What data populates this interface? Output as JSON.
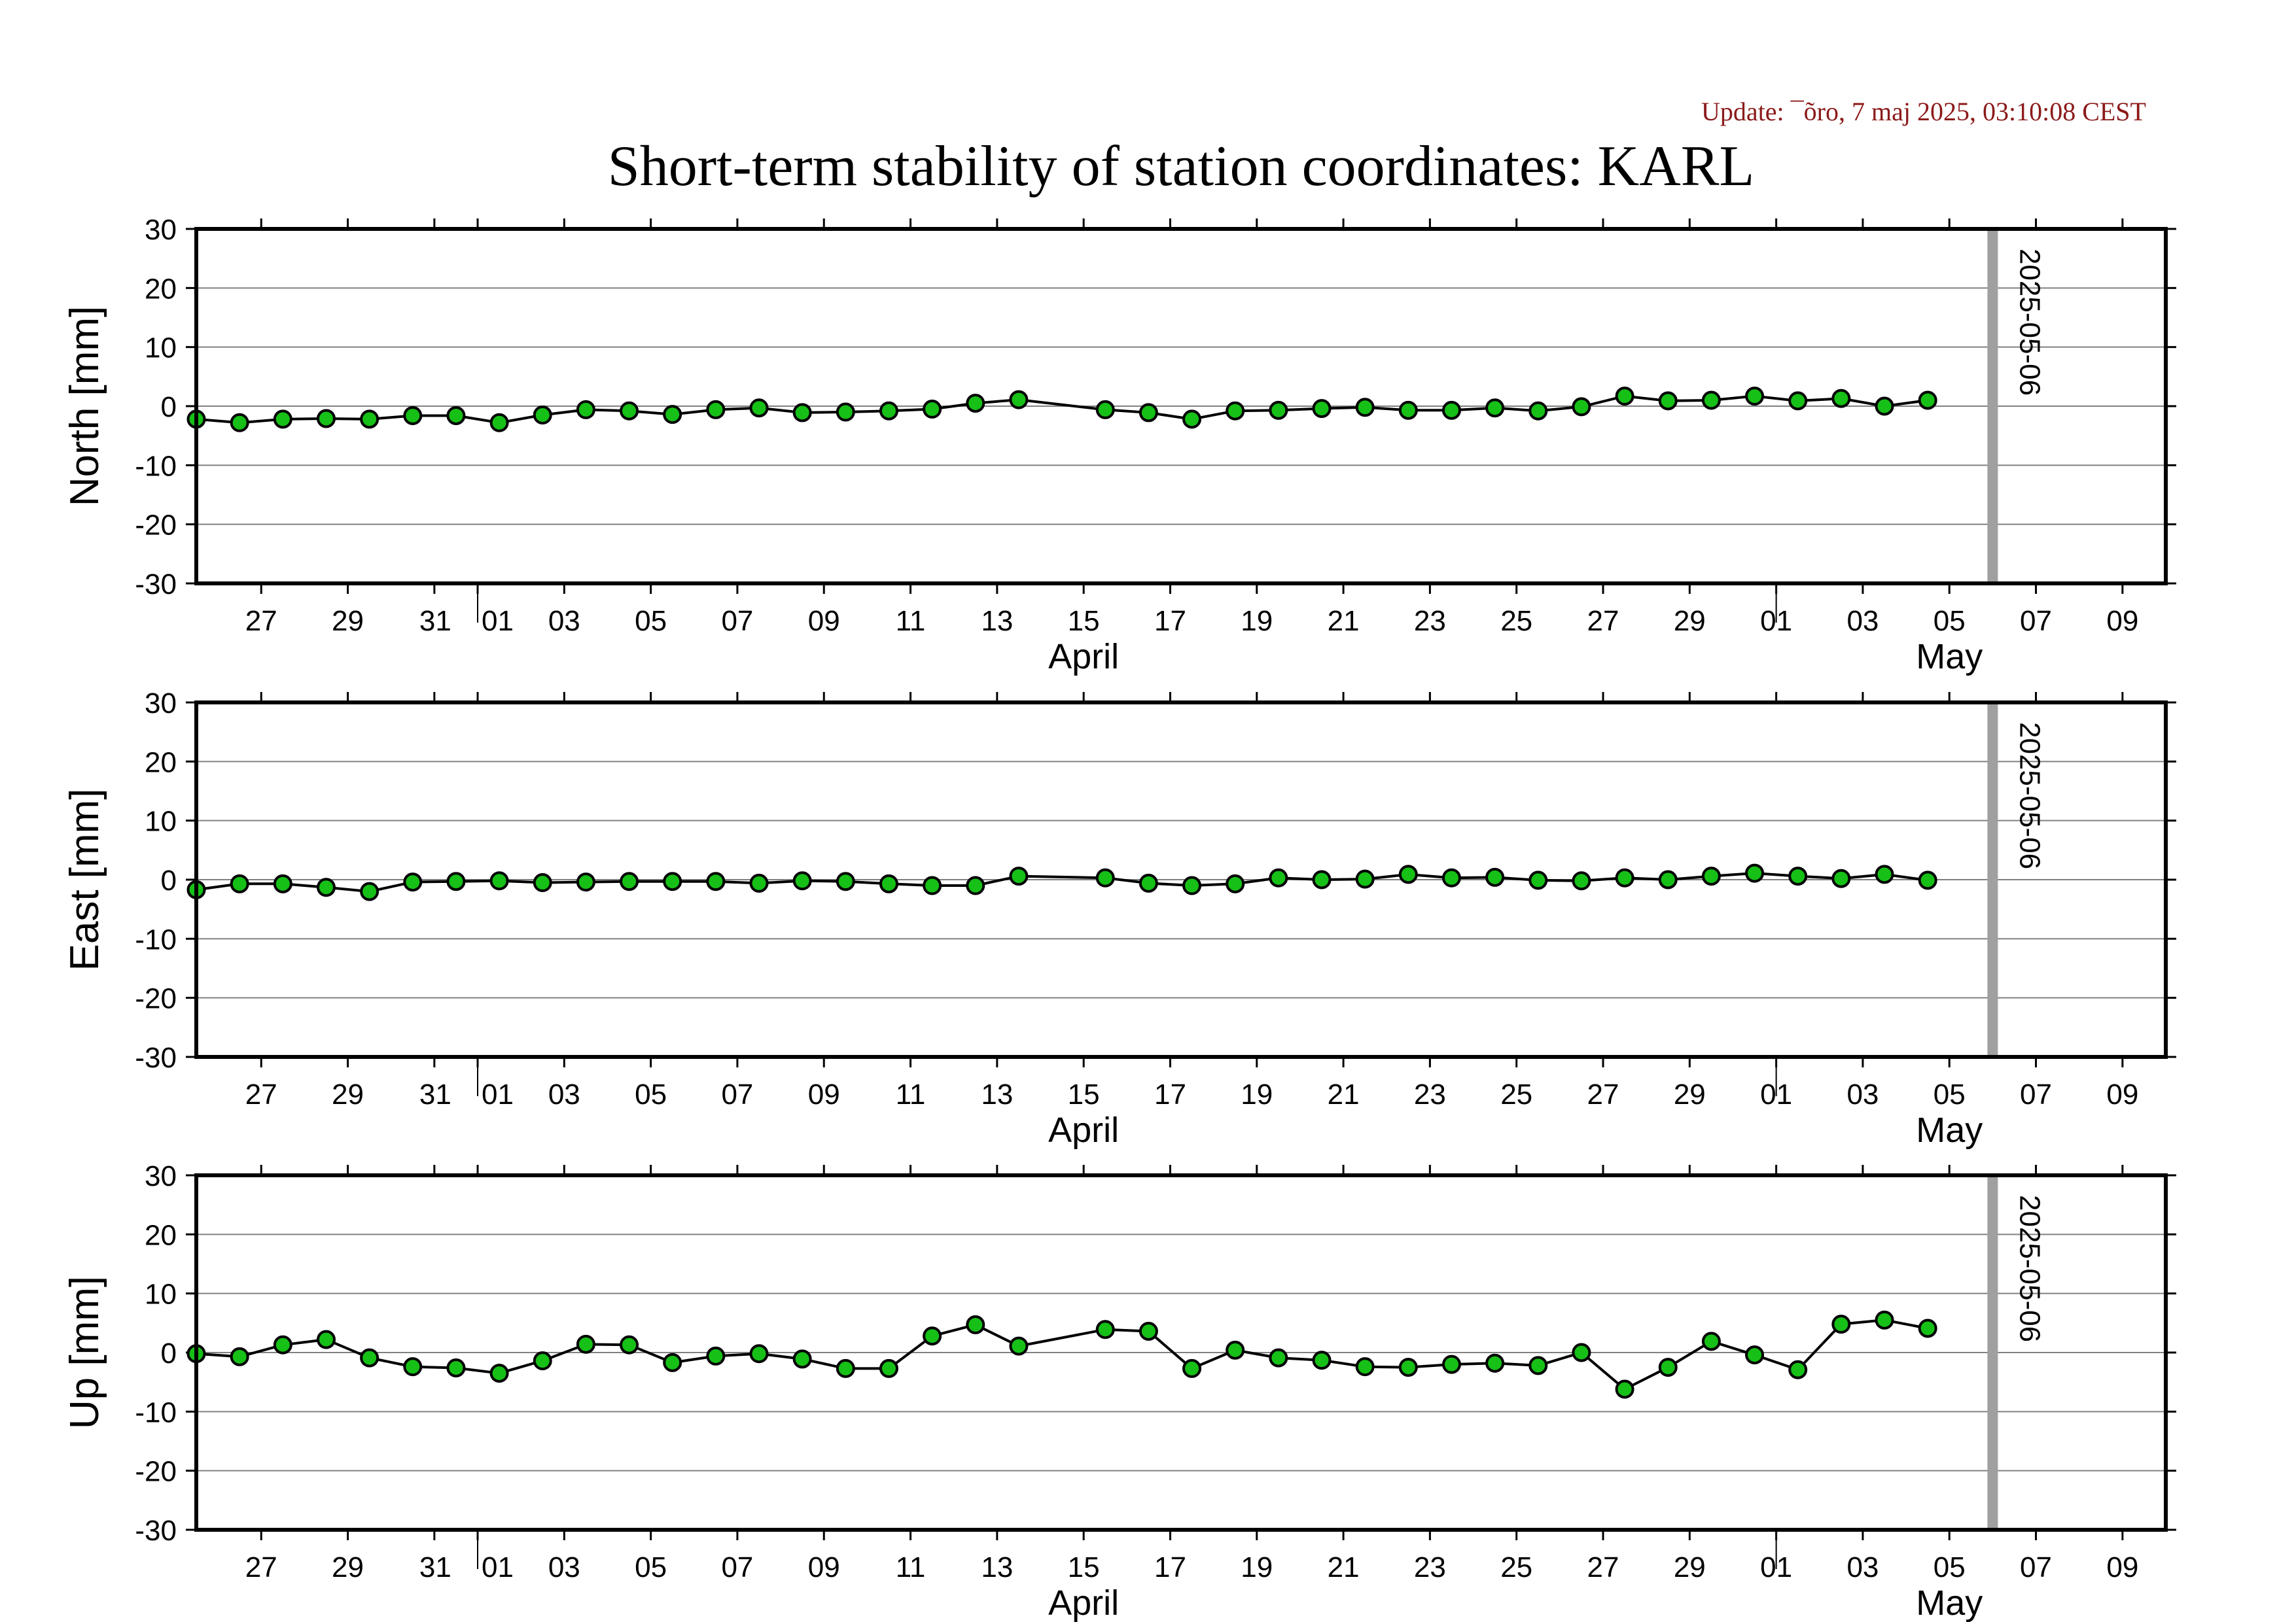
{
  "update_text": "Update: ¯õro, 7 maj 2025, 03:10:08 CEST",
  "title": "Short-term stability of station coordinates: KARL",
  "colors": {
    "update": "#8b1a1a",
    "point_fill": "#16c016",
    "point_stroke": "#000000",
    "line": "#000000",
    "grid": "#808080",
    "marker_line": "#a0a0a0"
  },
  "icons": {
    "point": "circle-marker"
  },
  "chart_data": [
    {
      "type": "line",
      "ylabel": "North [mm]",
      "ylim": [
        -30,
        30
      ],
      "yticks": [
        30,
        20,
        10,
        0,
        -10,
        -20,
        -30
      ],
      "xlim": [
        "2025-03-25T12:00",
        "2025-05-10"
      ],
      "xticks": [
        {
          "date": "2025-03-27",
          "label": "27"
        },
        {
          "date": "2025-03-29",
          "label": "29"
        },
        {
          "date": "2025-03-31",
          "label": "31"
        },
        {
          "date": "2025-04-01",
          "label": "01"
        },
        {
          "date": "2025-04-03",
          "label": "03"
        },
        {
          "date": "2025-04-05",
          "label": "05"
        },
        {
          "date": "2025-04-07",
          "label": "07"
        },
        {
          "date": "2025-04-09",
          "label": "09"
        },
        {
          "date": "2025-04-11",
          "label": "11"
        },
        {
          "date": "2025-04-13",
          "label": "13"
        },
        {
          "date": "2025-04-15",
          "label": "15"
        },
        {
          "date": "2025-04-17",
          "label": "17"
        },
        {
          "date": "2025-04-19",
          "label": "19"
        },
        {
          "date": "2025-04-21",
          "label": "21"
        },
        {
          "date": "2025-04-23",
          "label": "23"
        },
        {
          "date": "2025-04-25",
          "label": "25"
        },
        {
          "date": "2025-04-27",
          "label": "27"
        },
        {
          "date": "2025-04-29",
          "label": "29"
        },
        {
          "date": "2025-05-01",
          "label": "01"
        },
        {
          "date": "2025-05-03",
          "label": "03"
        },
        {
          "date": "2025-05-05",
          "label": "05"
        },
        {
          "date": "2025-05-07",
          "label": "07"
        },
        {
          "date": "2025-05-09",
          "label": "09"
        }
      ],
      "month_labels": [
        {
          "date": "2025-04-15",
          "label": "April"
        },
        {
          "date": "2025-05-05",
          "label": "May"
        }
      ],
      "marker_date": "2025-05-06",
      "marker_label": "2025-05-06",
      "grid": true,
      "x": [
        "2025-03-25T12:00",
        "2025-03-26T12:00",
        "2025-03-27T12:00",
        "2025-03-28T12:00",
        "2025-03-29T12:00",
        "2025-03-30T12:00",
        "2025-03-31T12:00",
        "2025-04-01T12:00",
        "2025-04-02T12:00",
        "2025-04-03T12:00",
        "2025-04-04T12:00",
        "2025-04-05T12:00",
        "2025-04-06T12:00",
        "2025-04-07T12:00",
        "2025-04-08T12:00",
        "2025-04-09T12:00",
        "2025-04-10T12:00",
        "2025-04-11T12:00",
        "2025-04-12T12:00",
        "2025-04-13T12:00",
        "2025-04-15T12:00",
        "2025-04-16T12:00",
        "2025-04-17T12:00",
        "2025-04-18T12:00",
        "2025-04-19T12:00",
        "2025-04-20T12:00",
        "2025-04-21T12:00",
        "2025-04-22T12:00",
        "2025-04-23T12:00",
        "2025-04-24T12:00",
        "2025-04-25T12:00",
        "2025-04-26T12:00",
        "2025-04-27T12:00",
        "2025-04-28T12:00",
        "2025-04-29T12:00",
        "2025-04-30T12:00",
        "2025-05-01T12:00",
        "2025-05-02T12:00",
        "2025-05-03T12:00",
        "2025-05-04T12:00"
      ],
      "y": [
        -2.2,
        -2.8,
        -2.2,
        -2.1,
        -2.2,
        -1.6,
        -1.6,
        -2.8,
        -1.5,
        -0.6,
        -0.8,
        -1.4,
        -0.6,
        -0.3,
        -1.1,
        -1.0,
        -0.8,
        -0.5,
        0.5,
        1.1,
        -0.6,
        -1.1,
        -2.2,
        -0.8,
        -0.7,
        -0.4,
        -0.2,
        -0.7,
        -0.7,
        -0.3,
        -0.8,
        -0.1,
        1.7,
        0.9,
        1.0,
        1.7,
        0.9,
        1.3,
        0.0,
        1.0
      ]
    },
    {
      "type": "line",
      "ylabel": "East [mm]",
      "ylim": [
        -30,
        30
      ],
      "yticks": [
        30,
        20,
        10,
        0,
        -10,
        -20,
        -30
      ],
      "xlim": [
        "2025-03-25T12:00",
        "2025-05-10"
      ],
      "xticks": [
        {
          "date": "2025-03-27",
          "label": "27"
        },
        {
          "date": "2025-03-29",
          "label": "29"
        },
        {
          "date": "2025-03-31",
          "label": "31"
        },
        {
          "date": "2025-04-01",
          "label": "01"
        },
        {
          "date": "2025-04-03",
          "label": "03"
        },
        {
          "date": "2025-04-05",
          "label": "05"
        },
        {
          "date": "2025-04-07",
          "label": "07"
        },
        {
          "date": "2025-04-09",
          "label": "09"
        },
        {
          "date": "2025-04-11",
          "label": "11"
        },
        {
          "date": "2025-04-13",
          "label": "13"
        },
        {
          "date": "2025-04-15",
          "label": "15"
        },
        {
          "date": "2025-04-17",
          "label": "17"
        },
        {
          "date": "2025-04-19",
          "label": "19"
        },
        {
          "date": "2025-04-21",
          "label": "21"
        },
        {
          "date": "2025-04-23",
          "label": "23"
        },
        {
          "date": "2025-04-25",
          "label": "25"
        },
        {
          "date": "2025-04-27",
          "label": "27"
        },
        {
          "date": "2025-04-29",
          "label": "29"
        },
        {
          "date": "2025-05-01",
          "label": "01"
        },
        {
          "date": "2025-05-03",
          "label": "03"
        },
        {
          "date": "2025-05-05",
          "label": "05"
        },
        {
          "date": "2025-05-07",
          "label": "07"
        },
        {
          "date": "2025-05-09",
          "label": "09"
        }
      ],
      "month_labels": [
        {
          "date": "2025-04-15",
          "label": "April"
        },
        {
          "date": "2025-05-05",
          "label": "May"
        }
      ],
      "marker_date": "2025-05-06",
      "marker_label": "2025-05-06",
      "grid": true,
      "x": [
        "2025-03-25T12:00",
        "2025-03-26T12:00",
        "2025-03-27T12:00",
        "2025-03-28T12:00",
        "2025-03-29T12:00",
        "2025-03-30T12:00",
        "2025-03-31T12:00",
        "2025-04-01T12:00",
        "2025-04-02T12:00",
        "2025-04-03T12:00",
        "2025-04-04T12:00",
        "2025-04-05T12:00",
        "2025-04-06T12:00",
        "2025-04-07T12:00",
        "2025-04-08T12:00",
        "2025-04-09T12:00",
        "2025-04-10T12:00",
        "2025-04-11T12:00",
        "2025-04-12T12:00",
        "2025-04-13T12:00",
        "2025-04-15T12:00",
        "2025-04-16T12:00",
        "2025-04-17T12:00",
        "2025-04-18T12:00",
        "2025-04-19T12:00",
        "2025-04-20T12:00",
        "2025-04-21T12:00",
        "2025-04-22T12:00",
        "2025-04-23T12:00",
        "2025-04-24T12:00",
        "2025-04-25T12:00",
        "2025-04-26T12:00",
        "2025-04-27T12:00",
        "2025-04-28T12:00",
        "2025-04-29T12:00",
        "2025-04-30T12:00",
        "2025-05-01T12:00",
        "2025-05-02T12:00",
        "2025-05-03T12:00",
        "2025-05-04T12:00"
      ],
      "y": [
        -1.7,
        -0.7,
        -0.7,
        -1.3,
        -2.0,
        -0.4,
        -0.3,
        -0.2,
        -0.5,
        -0.4,
        -0.3,
        -0.3,
        -0.3,
        -0.6,
        -0.2,
        -0.3,
        -0.7,
        -1.0,
        -1.0,
        0.6,
        0.3,
        -0.6,
        -1.0,
        -0.7,
        0.3,
        0.0,
        0.1,
        0.9,
        0.3,
        0.4,
        -0.1,
        -0.2,
        0.3,
        0.0,
        0.6,
        1.1,
        0.6,
        0.2,
        0.9,
        -0.1
      ]
    },
    {
      "type": "line",
      "ylabel": "Up [mm]",
      "ylim": [
        -30,
        30
      ],
      "yticks": [
        30,
        20,
        10,
        0,
        -10,
        -20,
        -30
      ],
      "xlim": [
        "2025-03-25T12:00",
        "2025-05-10"
      ],
      "xticks": [
        {
          "date": "2025-03-27",
          "label": "27"
        },
        {
          "date": "2025-03-29",
          "label": "29"
        },
        {
          "date": "2025-03-31",
          "label": "31"
        },
        {
          "date": "2025-04-01",
          "label": "01"
        },
        {
          "date": "2025-04-03",
          "label": "03"
        },
        {
          "date": "2025-04-05",
          "label": "05"
        },
        {
          "date": "2025-04-07",
          "label": "07"
        },
        {
          "date": "2025-04-09",
          "label": "09"
        },
        {
          "date": "2025-04-11",
          "label": "11"
        },
        {
          "date": "2025-04-13",
          "label": "13"
        },
        {
          "date": "2025-04-15",
          "label": "15"
        },
        {
          "date": "2025-04-17",
          "label": "17"
        },
        {
          "date": "2025-04-19",
          "label": "19"
        },
        {
          "date": "2025-04-21",
          "label": "21"
        },
        {
          "date": "2025-04-23",
          "label": "23"
        },
        {
          "date": "2025-04-25",
          "label": "25"
        },
        {
          "date": "2025-04-27",
          "label": "27"
        },
        {
          "date": "2025-04-29",
          "label": "29"
        },
        {
          "date": "2025-05-01",
          "label": "01"
        },
        {
          "date": "2025-05-03",
          "label": "03"
        },
        {
          "date": "2025-05-05",
          "label": "05"
        },
        {
          "date": "2025-05-07",
          "label": "07"
        },
        {
          "date": "2025-05-09",
          "label": "09"
        }
      ],
      "month_labels": [
        {
          "date": "2025-04-15",
          "label": "April"
        },
        {
          "date": "2025-05-05",
          "label": "May"
        }
      ],
      "marker_date": "2025-05-06",
      "marker_label": "2025-05-06",
      "grid": true,
      "x": [
        "2025-03-25T12:00",
        "2025-03-26T12:00",
        "2025-03-27T12:00",
        "2025-03-28T12:00",
        "2025-03-29T12:00",
        "2025-03-30T12:00",
        "2025-03-31T12:00",
        "2025-04-01T12:00",
        "2025-04-02T12:00",
        "2025-04-03T12:00",
        "2025-04-04T12:00",
        "2025-04-05T12:00",
        "2025-04-06T12:00",
        "2025-04-07T12:00",
        "2025-04-08T12:00",
        "2025-04-09T12:00",
        "2025-04-10T12:00",
        "2025-04-11T12:00",
        "2025-04-12T12:00",
        "2025-04-13T12:00",
        "2025-04-15T12:00",
        "2025-04-16T12:00",
        "2025-04-17T12:00",
        "2025-04-18T12:00",
        "2025-04-19T12:00",
        "2025-04-20T12:00",
        "2025-04-21T12:00",
        "2025-04-22T12:00",
        "2025-04-23T12:00",
        "2025-04-24T12:00",
        "2025-04-25T12:00",
        "2025-04-26T12:00",
        "2025-04-27T12:00",
        "2025-04-28T12:00",
        "2025-04-29T12:00",
        "2025-04-30T12:00",
        "2025-05-01T12:00",
        "2025-05-02T12:00",
        "2025-05-03T12:00",
        "2025-05-04T12:00"
      ],
      "y": [
        -0.2,
        -0.7,
        1.3,
        2.2,
        -0.9,
        -2.4,
        -2.6,
        -3.5,
        -1.4,
        1.4,
        1.3,
        -1.7,
        -0.6,
        -0.2,
        -1.1,
        -2.7,
        -2.7,
        2.8,
        4.7,
        1.1,
        3.9,
        3.6,
        -2.7,
        0.4,
        -0.9,
        -1.3,
        -2.4,
        -2.5,
        -2.0,
        -1.8,
        -2.2,
        0.0,
        -6.2,
        -2.5,
        1.9,
        -0.4,
        -2.9,
        4.8,
        5.5,
        4.1
      ]
    }
  ]
}
